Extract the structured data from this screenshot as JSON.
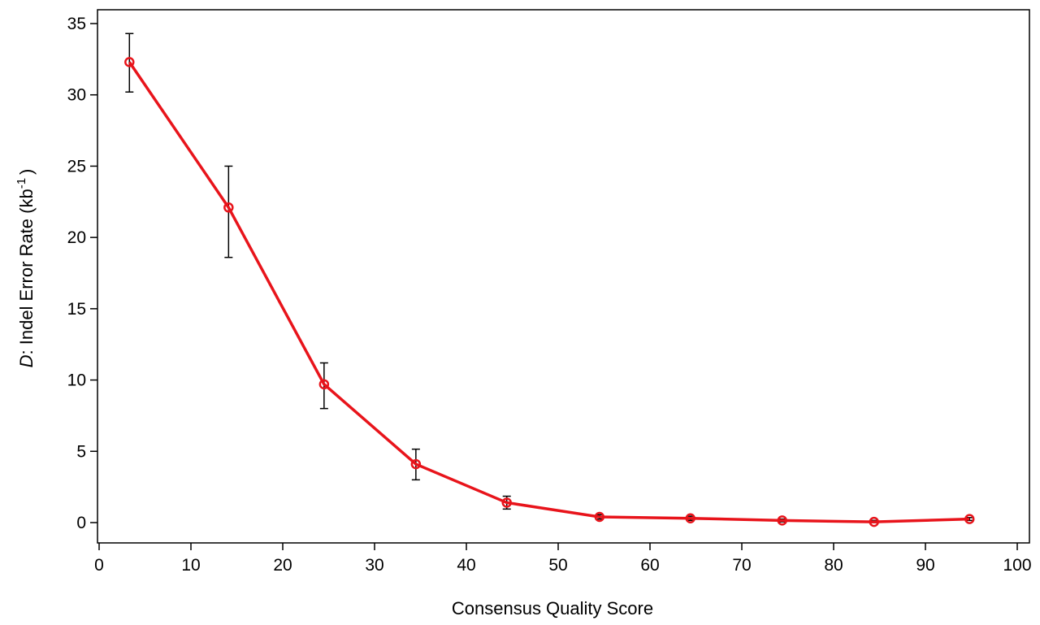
{
  "chart_data": {
    "type": "line",
    "title": "",
    "xlabel": "Consensus Quality Score",
    "ylabel": {
      "prefix": "D",
      "main": ": Indel Error Rate (kb",
      "sup": "-1",
      "suffix": ")"
    },
    "xlim": [
      0,
      100
    ],
    "ylim": [
      0,
      35
    ],
    "xticks": [
      0,
      10,
      20,
      30,
      40,
      50,
      60,
      70,
      80,
      90,
      100
    ],
    "yticks": [
      0,
      5,
      10,
      15,
      20,
      25,
      30,
      35
    ],
    "grid": false,
    "legend": "none",
    "series": [
      {
        "color": "#e8141b",
        "marker": "open-circle",
        "x": [
          3.3,
          14.1,
          24.5,
          34.5,
          44.4,
          54.5,
          64.4,
          74.4,
          84.4,
          94.8
        ],
        "y": [
          32.3,
          22.1,
          9.7,
          4.1,
          1.4,
          0.4,
          0.3,
          0.15,
          0.05,
          0.25
        ],
        "err_low": [
          30.2,
          18.6,
          8.0,
          3.0,
          0.95,
          0.25,
          0.15,
          0.05,
          0.0,
          0.15
        ],
        "err_high": [
          34.3,
          25.0,
          11.2,
          5.15,
          1.85,
          0.55,
          0.45,
          0.25,
          0.15,
          0.35
        ]
      }
    ]
  }
}
